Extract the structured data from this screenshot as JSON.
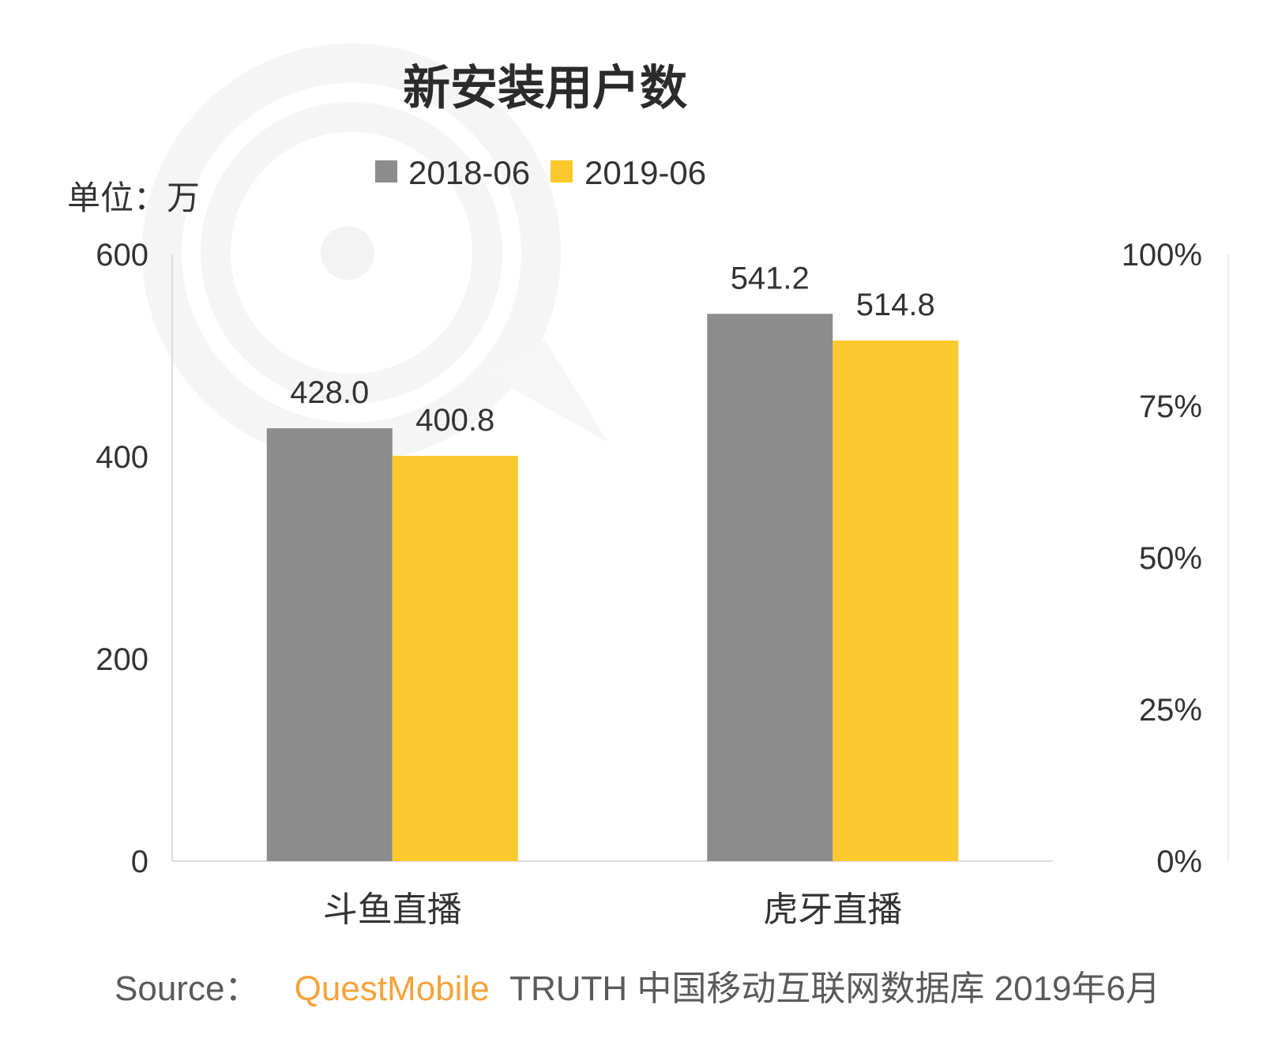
{
  "chart_data": {
    "type": "bar",
    "title": "新安装用户数",
    "ylabel": "单位：万",
    "categories": [
      "斗鱼直播",
      "虎牙直播"
    ],
    "series": [
      {
        "name": "2018-06",
        "color": "#8c8c8c",
        "values": [
          428.0,
          541.2
        ]
      },
      {
        "name": "2019-06",
        "color": "#fbc82d",
        "values": [
          400.8,
          514.8
        ]
      }
    ],
    "ylim": [
      0,
      600
    ],
    "yticks": [
      600,
      400,
      200,
      0
    ],
    "y2lim": [
      0,
      100
    ],
    "y2ticks": [
      "100%",
      "75%",
      "50%",
      "25%",
      "0%"
    ],
    "legend_position": "top-center",
    "grid": false
  },
  "source": {
    "label": "Source：",
    "brand": "QuestMobile",
    "text": "TRUTH 中国移动互联网数据库 2019年6月",
    "brand_color": "#f4a33b"
  }
}
